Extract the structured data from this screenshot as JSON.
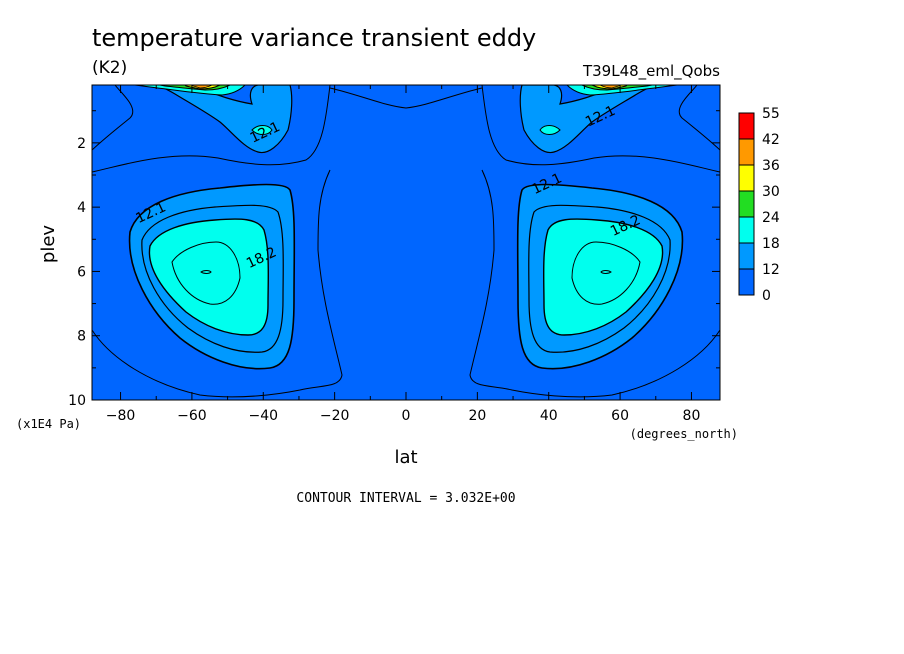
{
  "chart_data": {
    "type": "contour",
    "title": "temperature variance transient eddy",
    "units": "(K2)",
    "run_label": "T39L48_eml_Qobs",
    "xlabel": "lat",
    "xunits": "(degrees_north)",
    "ylabel": "plev",
    "yunits": "(x1E4 Pa)",
    "contour_interval_text": "CONTOUR INTERVAL = 3.032E+00",
    "xlim": [
      -88,
      88
    ],
    "ylim": [
      0.2,
      10
    ],
    "y_inverted": true,
    "x_ticks": [
      -80,
      -60,
      -40,
      -20,
      0,
      20,
      40,
      60,
      80
    ],
    "x_tick_labels": [
      "−80",
      "−60",
      "−40",
      "−20",
      "0",
      "20",
      "40",
      "60",
      "80"
    ],
    "y_ticks": [
      2,
      4,
      6,
      8,
      10
    ],
    "y_tick_labels": [
      "2",
      "4",
      "6",
      "8",
      "10"
    ],
    "contour_labels": [
      {
        "text": "12.1",
        "lat": -39,
        "plev": 1.8
      },
      {
        "text": "12.1",
        "lat": -71,
        "plev": 4.3
      },
      {
        "text": "18.2",
        "lat": -40,
        "plev": 5.7
      },
      {
        "text": "12.1",
        "lat": 55,
        "plev": 1.3
      },
      {
        "text": "12.1",
        "lat": 40,
        "plev": 3.4
      },
      {
        "text": "18.2",
        "lat": 62,
        "plev": 4.7
      }
    ],
    "legend": {
      "levels": [
        "55",
        "42",
        "36",
        "30",
        "24",
        "18",
        "12",
        "0"
      ],
      "colors": [
        "#ff0000",
        "#ff9900",
        "#ffff00",
        "#22dd22",
        "#00ffee",
        "#0099ff",
        "#0066ff"
      ]
    }
  }
}
